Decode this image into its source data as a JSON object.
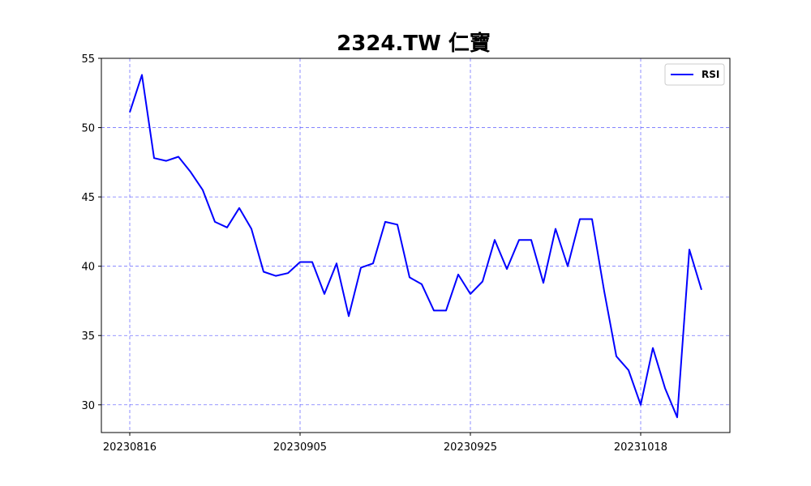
{
  "chart_data": {
    "type": "line",
    "title": "2324.TW 仁寶",
    "xlabel": "",
    "ylabel": "",
    "ylim": [
      28,
      55
    ],
    "yticks": [
      30,
      35,
      40,
      45,
      50,
      55
    ],
    "grid": true,
    "legend_position": "top-right",
    "xtick_labels": [
      {
        "index": 0,
        "label": "20230816"
      },
      {
        "index": 14,
        "label": "20230905"
      },
      {
        "index": 28,
        "label": "20230925"
      },
      {
        "index": 42,
        "label": "20231018"
      }
    ],
    "series": [
      {
        "name": "RSI",
        "color": "#0000ff",
        "values": [
          51.1,
          53.8,
          47.8,
          47.6,
          47.9,
          46.8,
          45.5,
          43.2,
          42.8,
          44.2,
          42.7,
          39.6,
          39.3,
          39.5,
          40.3,
          40.3,
          38.0,
          40.2,
          36.4,
          39.9,
          40.2,
          43.2,
          43.0,
          39.2,
          38.7,
          36.8,
          36.8,
          39.4,
          38.0,
          38.9,
          41.9,
          39.8,
          41.9,
          41.9,
          38.8,
          42.7,
          40.0,
          43.4,
          43.4,
          38.2,
          33.5,
          32.5,
          30.0,
          34.1,
          31.2,
          29.1,
          41.2,
          38.3
        ]
      }
    ],
    "grid_color": "#0000ff"
  }
}
